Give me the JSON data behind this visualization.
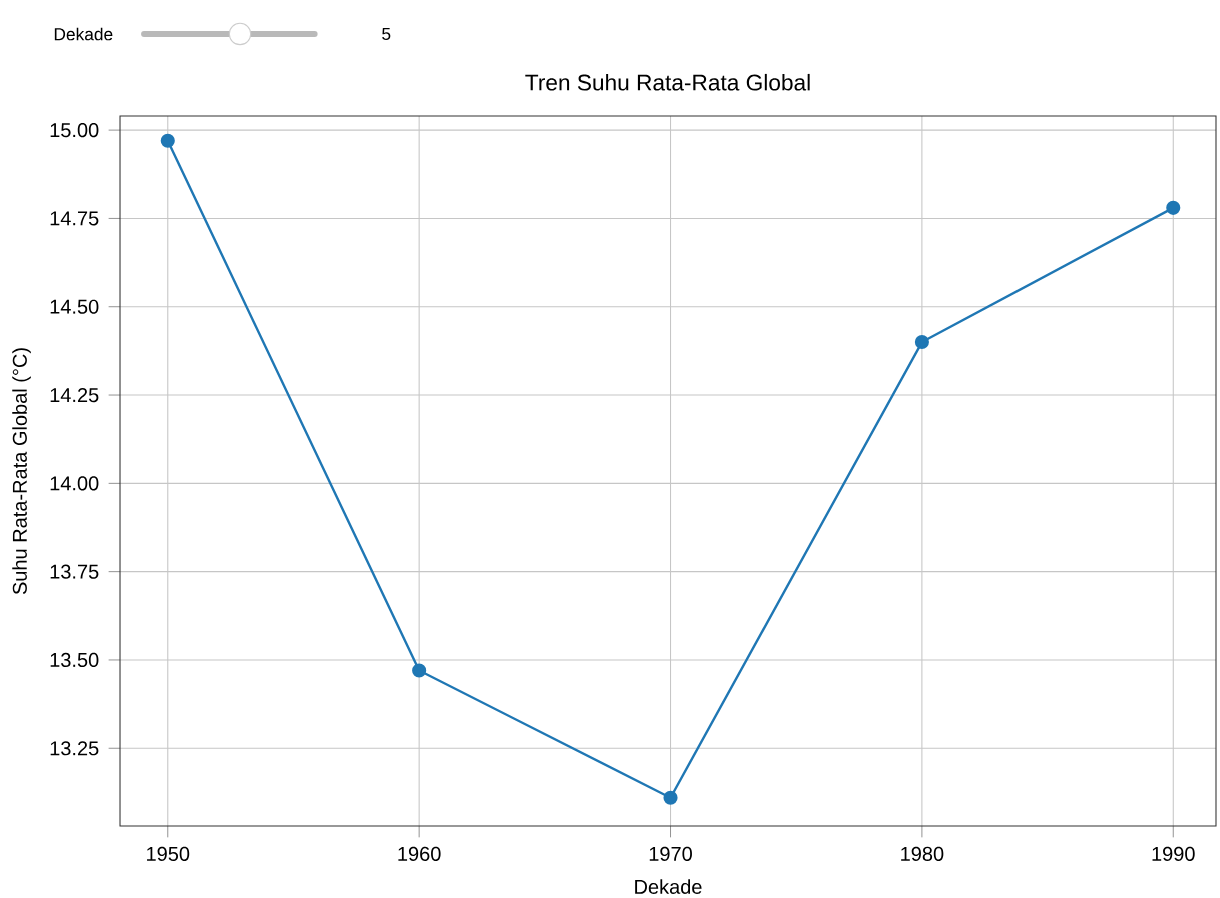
{
  "chart_data": {
    "type": "line",
    "title": "Tren Suhu Rata-Rata Global",
    "xlabel": "Dekade",
    "ylabel": "Suhu Rata-Rata Global (°C)",
    "x": [
      1950,
      1960,
      1970,
      1980,
      1990
    ],
    "series": [
      {
        "color": "#1f77b4",
        "values": [
          14.97,
          13.47,
          13.11,
          14.4,
          14.78
        ]
      }
    ],
    "xlim": [
      1948.1,
      1991.7
    ],
    "xticks": [
      1950,
      1960,
      1970,
      1980,
      1990
    ],
    "ylim": [
      13.03,
      15.04
    ],
    "yticks": [
      {
        "value": 13.25,
        "label": "13.25"
      },
      {
        "value": 13.5,
        "label": "13.50"
      },
      {
        "value": 13.75,
        "label": "13.75"
      },
      {
        "value": 14.0,
        "label": "14.00"
      },
      {
        "value": 14.25,
        "label": "14.25"
      },
      {
        "value": 14.5,
        "label": "14.50"
      },
      {
        "value": 14.75,
        "label": "14.75"
      },
      {
        "value": 15.0,
        "label": "15.00"
      }
    ],
    "grid": true,
    "marker": "circle",
    "line_style": "solid",
    "annotations": [
      "Dekade",
      "5"
    ]
  }
}
